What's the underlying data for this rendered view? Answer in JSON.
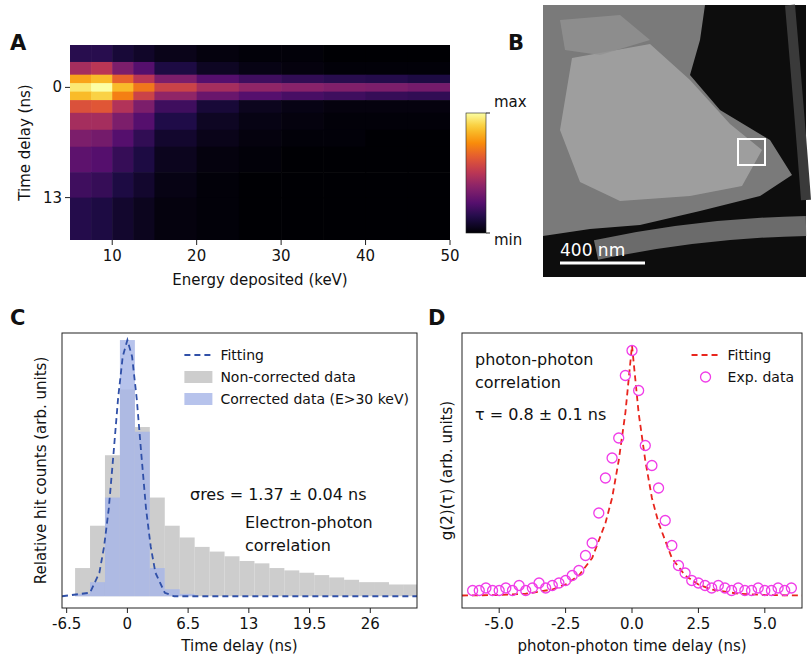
{
  "chart_data": [
    {
      "type": "heatmap",
      "panel_label": "A",
      "x_label": "Energy deposited (keV)",
      "y_label": "Time delay (ns)",
      "xlim": [
        5,
        50
      ],
      "ylim": [
        -5,
        18
      ],
      "xticks": [
        10,
        20,
        30,
        40,
        50
      ],
      "yticks": [
        0,
        13
      ],
      "x_bins": [
        5,
        7.5,
        10,
        12.5,
        15,
        20,
        25,
        30,
        35,
        40,
        45,
        50
      ],
      "y_bins": [
        -5,
        -3,
        -1.5,
        -0.5,
        0.5,
        1.5,
        3,
        5,
        7,
        10,
        13,
        18
      ],
      "cells": [
        [
          0.15,
          0.15,
          0.1,
          0.07,
          0.04,
          0.02,
          0.01,
          0.01,
          0,
          0,
          0
        ],
        [
          0.45,
          0.5,
          0.35,
          0.25,
          0.12,
          0.06,
          0.03,
          0.02,
          0.01,
          0.01,
          0.01
        ],
        [
          0.8,
          0.85,
          0.65,
          0.5,
          0.35,
          0.25,
          0.2,
          0.17,
          0.15,
          0.14,
          0.12
        ],
        [
          0.95,
          1.0,
          0.85,
          0.7,
          0.55,
          0.45,
          0.4,
          0.38,
          0.36,
          0.35,
          0.33
        ],
        [
          0.85,
          0.9,
          0.72,
          0.55,
          0.4,
          0.3,
          0.25,
          0.22,
          0.2,
          0.18,
          0.17
        ],
        [
          0.6,
          0.62,
          0.48,
          0.35,
          0.2,
          0.1,
          0.05,
          0.03,
          0.02,
          0.02,
          0.02
        ],
        [
          0.45,
          0.45,
          0.35,
          0.25,
          0.13,
          0.06,
          0.03,
          0.02,
          0.01,
          0.01,
          0.01
        ],
        [
          0.35,
          0.33,
          0.25,
          0.17,
          0.08,
          0.04,
          0.02,
          0.01,
          0.01,
          0,
          0
        ],
        [
          0.27,
          0.25,
          0.18,
          0.12,
          0.05,
          0.02,
          0.01,
          0,
          0,
          0,
          0
        ],
        [
          0.2,
          0.18,
          0.12,
          0.08,
          0.03,
          0.01,
          0,
          0,
          0,
          0,
          0
        ],
        [
          0.14,
          0.12,
          0.08,
          0.05,
          0.02,
          0.01,
          0,
          0,
          0,
          0,
          0
        ]
      ],
      "colorbar_range": [
        0,
        1
      ],
      "colorbar_ticks": [
        {
          "value": 0,
          "label": "min"
        },
        {
          "value": 1,
          "label": "max"
        }
      ],
      "grid": false
    },
    {
      "type": "histogram",
      "panel_label": "C",
      "x_label": "Time delay (ns)",
      "y_label": "Relative hit counts (arb. units)",
      "xlim": [
        -7,
        31
      ],
      "ylim": [
        -0.05,
        1.12
      ],
      "xticks": [
        -6.5,
        0,
        6.5,
        13,
        19.5,
        26
      ],
      "tick_labels": "x",
      "grid": false,
      "legend": "upper right",
      "fit_result": "σres = 1.37 ± 0.04 ns",
      "annotation": [
        "Electron-photon",
        "correlation"
      ],
      "bins": [
        -5.6,
        -4,
        -2.4,
        -0.8,
        0.8,
        2.4,
        4,
        5.6,
        7.2,
        8.8,
        10.4,
        12,
        13.6,
        15.2,
        16.8,
        18.4,
        20,
        21.6,
        23.2,
        24.8,
        26.4,
        28,
        29.6,
        31.2
      ],
      "series": [
        {
          "name": "Fitting",
          "type": "line",
          "line_style": "dashed",
          "color": "#3050a8",
          "x": [
            -7,
            -4,
            -3,
            -2.5,
            -2,
            -1.5,
            -1,
            -0.5,
            0,
            0.5,
            1,
            1.5,
            2,
            2.5,
            3,
            4,
            5,
            31
          ],
          "values": [
            0,
            0.015,
            0.1,
            0.21,
            0.37,
            0.6,
            0.84,
            1.02,
            1.09,
            1.02,
            0.84,
            0.6,
            0.37,
            0.21,
            0.1,
            0.015,
            0,
            0
          ]
        },
        {
          "name": "Non-corrected data",
          "color": "#c2c2c2",
          "values": [
            0.12,
            0.3,
            0.6,
            0.88,
            0.72,
            0.42,
            0.3,
            0.25,
            0.21,
            0.19,
            0.17,
            0.15,
            0.14,
            0.12,
            0.11,
            0.1,
            0.09,
            0.08,
            0.07,
            0.06,
            0.06,
            0.05,
            0.05
          ]
        },
        {
          "name": "Corrected data (E>30 keV)",
          "color": "#a7b6e8",
          "values": [
            0.01,
            0.06,
            0.42,
            1.09,
            0.7,
            0.12,
            0.03,
            0.01,
            0,
            0,
            0,
            0,
            0,
            0,
            0,
            0,
            0,
            0,
            0,
            0,
            0,
            0,
            0
          ]
        }
      ]
    },
    {
      "type": "scatter",
      "panel_label": "D",
      "x_label": "photon-photon time delay (ns)",
      "y_label": "g(2)(τ) (arb. units)",
      "xlim": [
        -6.4,
        6.4
      ],
      "ylim": [
        -0.05,
        1.05
      ],
      "xticks": [
        {
          "value": -5,
          "label": "-5.0"
        },
        -2.5,
        {
          "value": 0,
          "label": "0.0"
        },
        2.5,
        {
          "value": 5,
          "label": "5.0"
        }
      ],
      "tick_labels": "x",
      "grid": false,
      "legend": "upper right",
      "annotation": [
        "photon-photon",
        "correlation"
      ],
      "fit_result": "τ = 0.8 ± 0.1 ns",
      "series": [
        {
          "name": "Fitting",
          "type": "line",
          "line_style": "dashed",
          "color": "#e8251d",
          "x": [
            -6.4,
            -5,
            -4,
            -3,
            -2.5,
            -2,
            -1.5,
            -1,
            -0.75,
            -0.5,
            -0.25,
            0,
            0.25,
            0.5,
            0.75,
            1,
            1.5,
            2,
            2.5,
            3,
            4,
            5,
            6.4
          ],
          "values": [
            0,
            0.002,
            0.007,
            0.024,
            0.044,
            0.08,
            0.15,
            0.29,
            0.39,
            0.54,
            0.73,
            1,
            0.73,
            0.54,
            0.39,
            0.29,
            0.15,
            0.08,
            0.044,
            0.024,
            0.007,
            0.002,
            0
          ]
        },
        {
          "name": "Exp. data",
          "type": "scatter",
          "marker": "circle",
          "color": "#f03ce8",
          "x": [
            -6,
            -5.75,
            -5.5,
            -5.25,
            -5,
            -4.75,
            -4.5,
            -4.25,
            -4,
            -3.75,
            -3.5,
            -3.25,
            -3,
            -2.75,
            -2.5,
            -2.25,
            -2,
            -1.75,
            -1.5,
            -1.25,
            -1,
            -0.75,
            -0.5,
            -0.25,
            0,
            0.25,
            0.5,
            0.75,
            1,
            1.25,
            1.5,
            1.75,
            2,
            2.25,
            2.5,
            2.75,
            3,
            3.25,
            3.5,
            3.75,
            4,
            4.25,
            4.5,
            4.75,
            5,
            5.25,
            5.5,
            5.75,
            6
          ],
          "values": [
            0.02,
            0.02,
            0.03,
            0.02,
            0.02,
            0.03,
            0.02,
            0.04,
            0.02,
            0.03,
            0.05,
            0.03,
            0.04,
            0.05,
            0.06,
            0.08,
            0.1,
            0.16,
            0.21,
            0.33,
            0.47,
            0.55,
            0.63,
            0.88,
            0.98,
            0.82,
            0.6,
            0.52,
            0.43,
            0.3,
            0.2,
            0.12,
            0.09,
            0.06,
            0.05,
            0.04,
            0.03,
            0.04,
            0.03,
            0.02,
            0.03,
            0.02,
            0.02,
            0.03,
            0.02,
            0.02,
            0.03,
            0.02,
            0.03
          ]
        }
      ]
    }
  ],
  "image_panel": {
    "panel_label": "B",
    "scale_bar_label": "400 nm"
  }
}
